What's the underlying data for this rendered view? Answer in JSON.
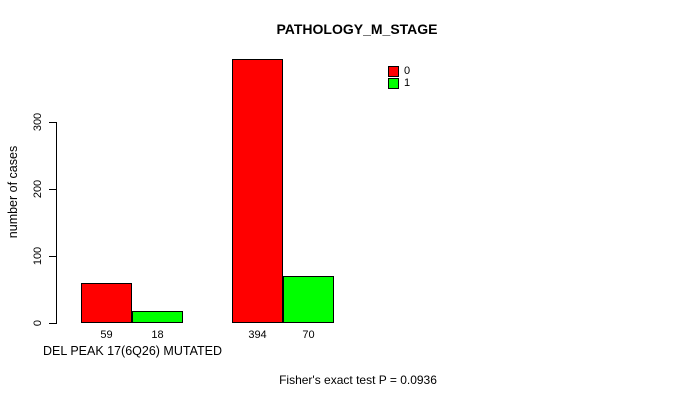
{
  "chart_data": {
    "type": "bar",
    "title": "PATHOLOGY_M_STAGE",
    "xlabel": "DEL PEAK 17(6Q26) MUTATED",
    "ylabel": "number of cases",
    "series": [
      {
        "name": "0",
        "color": "#ff0000"
      },
      {
        "name": "1",
        "color": "#00ff00"
      }
    ],
    "groups": [
      {
        "values": [
          59,
          18
        ]
      },
      {
        "values": [
          394,
          70
        ]
      }
    ],
    "bar_labels": [
      "59",
      "18",
      "394",
      "70"
    ],
    "yticks": [
      0,
      100,
      200,
      300
    ],
    "ylim": [
      0,
      394
    ],
    "grid": false,
    "legend_position": "top-right",
    "legend_entries": [
      "0",
      "1"
    ],
    "annotation": "Fisher's exact test P = 0.0936",
    "background": "#ffffff",
    "axis_color": "#000000"
  }
}
